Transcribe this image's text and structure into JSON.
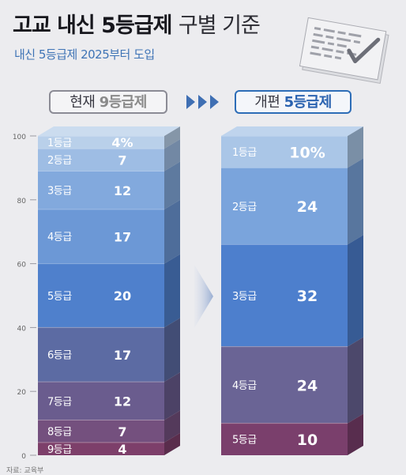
{
  "header": {
    "title_bold": "고교 내신 5등급제",
    "title_light": "구별 기준",
    "subtitle": "내신 5등급제 2025부터 도입"
  },
  "labels": {
    "current_prefix": "현재",
    "current_accent": "9등급제",
    "new_prefix": "개편",
    "new_accent": "5등급제"
  },
  "chart_data": [
    {
      "type": "bar",
      "name": "현재 9등급제",
      "stacked": true,
      "yticks": [
        0,
        20,
        40,
        60,
        80,
        100
      ],
      "ylim": [
        0,
        100
      ],
      "categories": [
        "1등급",
        "2등급",
        "3등급",
        "4등급",
        "5등급",
        "6등급",
        "7등급",
        "8등급",
        "9등급"
      ],
      "values": [
        4,
        7,
        12,
        17,
        20,
        17,
        12,
        7,
        4
      ],
      "value_labels": [
        "4%",
        "7",
        "12",
        "17",
        "20",
        "17",
        "12",
        "7",
        "4"
      ],
      "colors": [
        "#b9d0ea",
        "#9ebde4",
        "#82a9dd",
        "#6c98d6",
        "#4f80cc",
        "#5c6ba3",
        "#6a5c8e",
        "#74507e",
        "#7d3f6a"
      ]
    },
    {
      "type": "bar",
      "name": "개편 5등급제",
      "stacked": true,
      "ylim": [
        0,
        100
      ],
      "categories": [
        "1등급",
        "2등급",
        "3등급",
        "4등급",
        "5등급"
      ],
      "values": [
        10,
        24,
        32,
        24,
        10
      ],
      "value_labels": [
        "10%",
        "24",
        "32",
        "24",
        "10"
      ],
      "colors": [
        "#aac6e7",
        "#7aa4dc",
        "#4d7fcd",
        "#6a6495",
        "#7a3f6c"
      ]
    }
  ],
  "source_text": "자료: 교육부"
}
